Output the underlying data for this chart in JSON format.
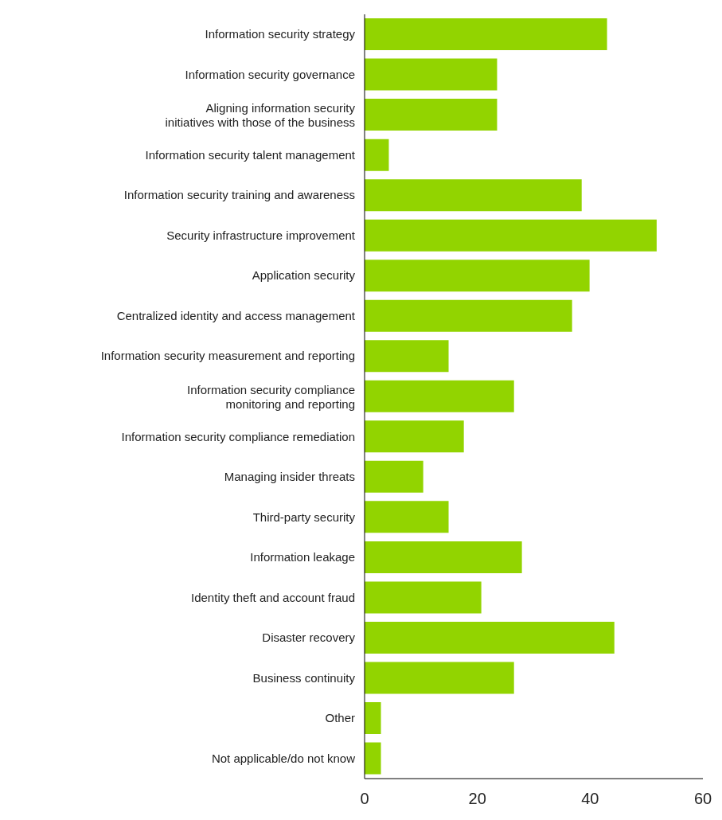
{
  "chart_data": {
    "type": "bar",
    "orientation": "horizontal",
    "categories": [
      "Information security strategy",
      "Information security governance",
      "Aligning information security initiatives with those of the business",
      "Information security talent management",
      "Information security training and awareness",
      "Security infrastructure improvement",
      "Application security",
      "Centralized identity and access management",
      "Information security measurement and reporting",
      "Information security compliance monitoring and reporting",
      "Information security compliance remediation",
      "Managing insider threats",
      "Third-party security",
      "Information leakage",
      "Identity theft and account fraud",
      "Disaster recovery",
      "Business continuity",
      "Other",
      "Not applicable/do not know"
    ],
    "values": [
      43,
      23.5,
      23.5,
      4.3,
      38.5,
      51.8,
      39.9,
      36.8,
      14.9,
      26.5,
      17.6,
      10.4,
      14.9,
      27.9,
      20.7,
      44.3,
      26.5,
      2.9,
      2.9
    ],
    "color": "#92d400",
    "xlim": [
      0,
      60
    ],
    "xticks": [
      0,
      20,
      40,
      60
    ],
    "grid": false,
    "legend": false
  }
}
